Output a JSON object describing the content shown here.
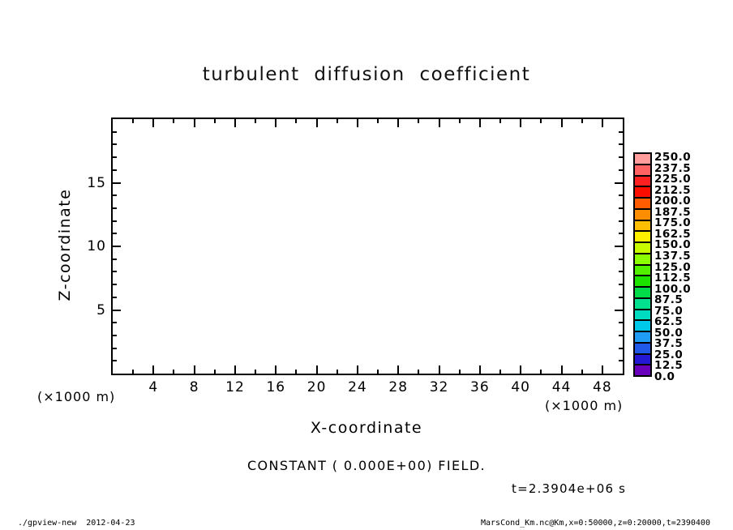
{
  "title": "turbulent diffusion coefficient",
  "axes": {
    "x": {
      "title": "X-coordinate",
      "units_label": "(×1000 m)",
      "range": [
        0,
        50
      ],
      "minor_tick_step": 2,
      "major_tick_multiple": 4,
      "major_tick_labels": [
        "4",
        "8",
        "12",
        "16",
        "20",
        "24",
        "28",
        "32",
        "36",
        "40",
        "44",
        "48"
      ],
      "major_tick_values": [
        4,
        8,
        12,
        16,
        20,
        24,
        28,
        32,
        36,
        40,
        44,
        48
      ]
    },
    "z": {
      "title": "Z-coordinate",
      "units_label": "(×1000 m)",
      "range": [
        0,
        20
      ],
      "minor_tick_step": 1,
      "major_tick_multiple": 5,
      "major_tick_labels": [
        "5",
        "10",
        "15"
      ],
      "major_tick_values": [
        5,
        10,
        15
      ]
    }
  },
  "colorbar": {
    "labels_top_to_bottom": [
      "250.0",
      "237.5",
      "225.0",
      "212.5",
      "200.0",
      "187.5",
      "175.0",
      "162.5",
      "150.0",
      "137.5",
      "125.0",
      "112.5",
      "100.0",
      "87.5",
      "75.0",
      "62.5",
      "50.0",
      "37.5",
      "25.0",
      "12.5",
      "0.0"
    ],
    "colors_top_to_bottom": [
      "#ff9c9c",
      "#ff6262",
      "#ff2121",
      "#fb0d00",
      "#ff5c00",
      "#ff8d00",
      "#ffbf00",
      "#fdf100",
      "#c8fb00",
      "#8cff00",
      "#50f000",
      "#1ce400",
      "#00dc48",
      "#00e08e",
      "#00dcc0",
      "#00c8e8",
      "#209cf4",
      "#2058e8",
      "#2418d4",
      "#6a00bc"
    ]
  },
  "annotations": {
    "field_note": "CONSTANT ( 0.000E+00) FIELD.",
    "time_label": "t=2.3904e+06 s"
  },
  "footer": {
    "left": "./gpview-new  2012-04-23",
    "right": "MarsCond_Km.nc@Km,x=0:50000,z=0:20000,t=2390400"
  },
  "chart_data": {
    "type": "heatmap",
    "title": "turbulent diffusion coefficient",
    "xlabel": "X-coordinate",
    "x_units": "×1000 m",
    "ylabel": "Z-coordinate",
    "y_units": "×1000 m",
    "xlim": [
      0,
      50
    ],
    "ylim": [
      0,
      20
    ],
    "x_major_ticks": [
      4,
      8,
      12,
      16,
      20,
      24,
      28,
      32,
      36,
      40,
      44,
      48
    ],
    "x_minor_tick_step": 2,
    "y_major_ticks": [
      5,
      10,
      15
    ],
    "y_minor_tick_step": 1,
    "grid": false,
    "field": "constant",
    "field_value": 0.0,
    "field_note": "CONSTANT ( 0.000E+00) FIELD.",
    "time_label": "t=2.3904e+06 s",
    "colorbar": {
      "position": "right",
      "min": 0.0,
      "max": 250.0,
      "step": 12.5,
      "levels": [
        0.0,
        12.5,
        25.0,
        37.5,
        50.0,
        62.5,
        75.0,
        87.5,
        100.0,
        112.5,
        125.0,
        137.5,
        150.0,
        162.5,
        175.0,
        187.5,
        200.0,
        212.5,
        225.0,
        237.5,
        250.0
      ]
    }
  }
}
